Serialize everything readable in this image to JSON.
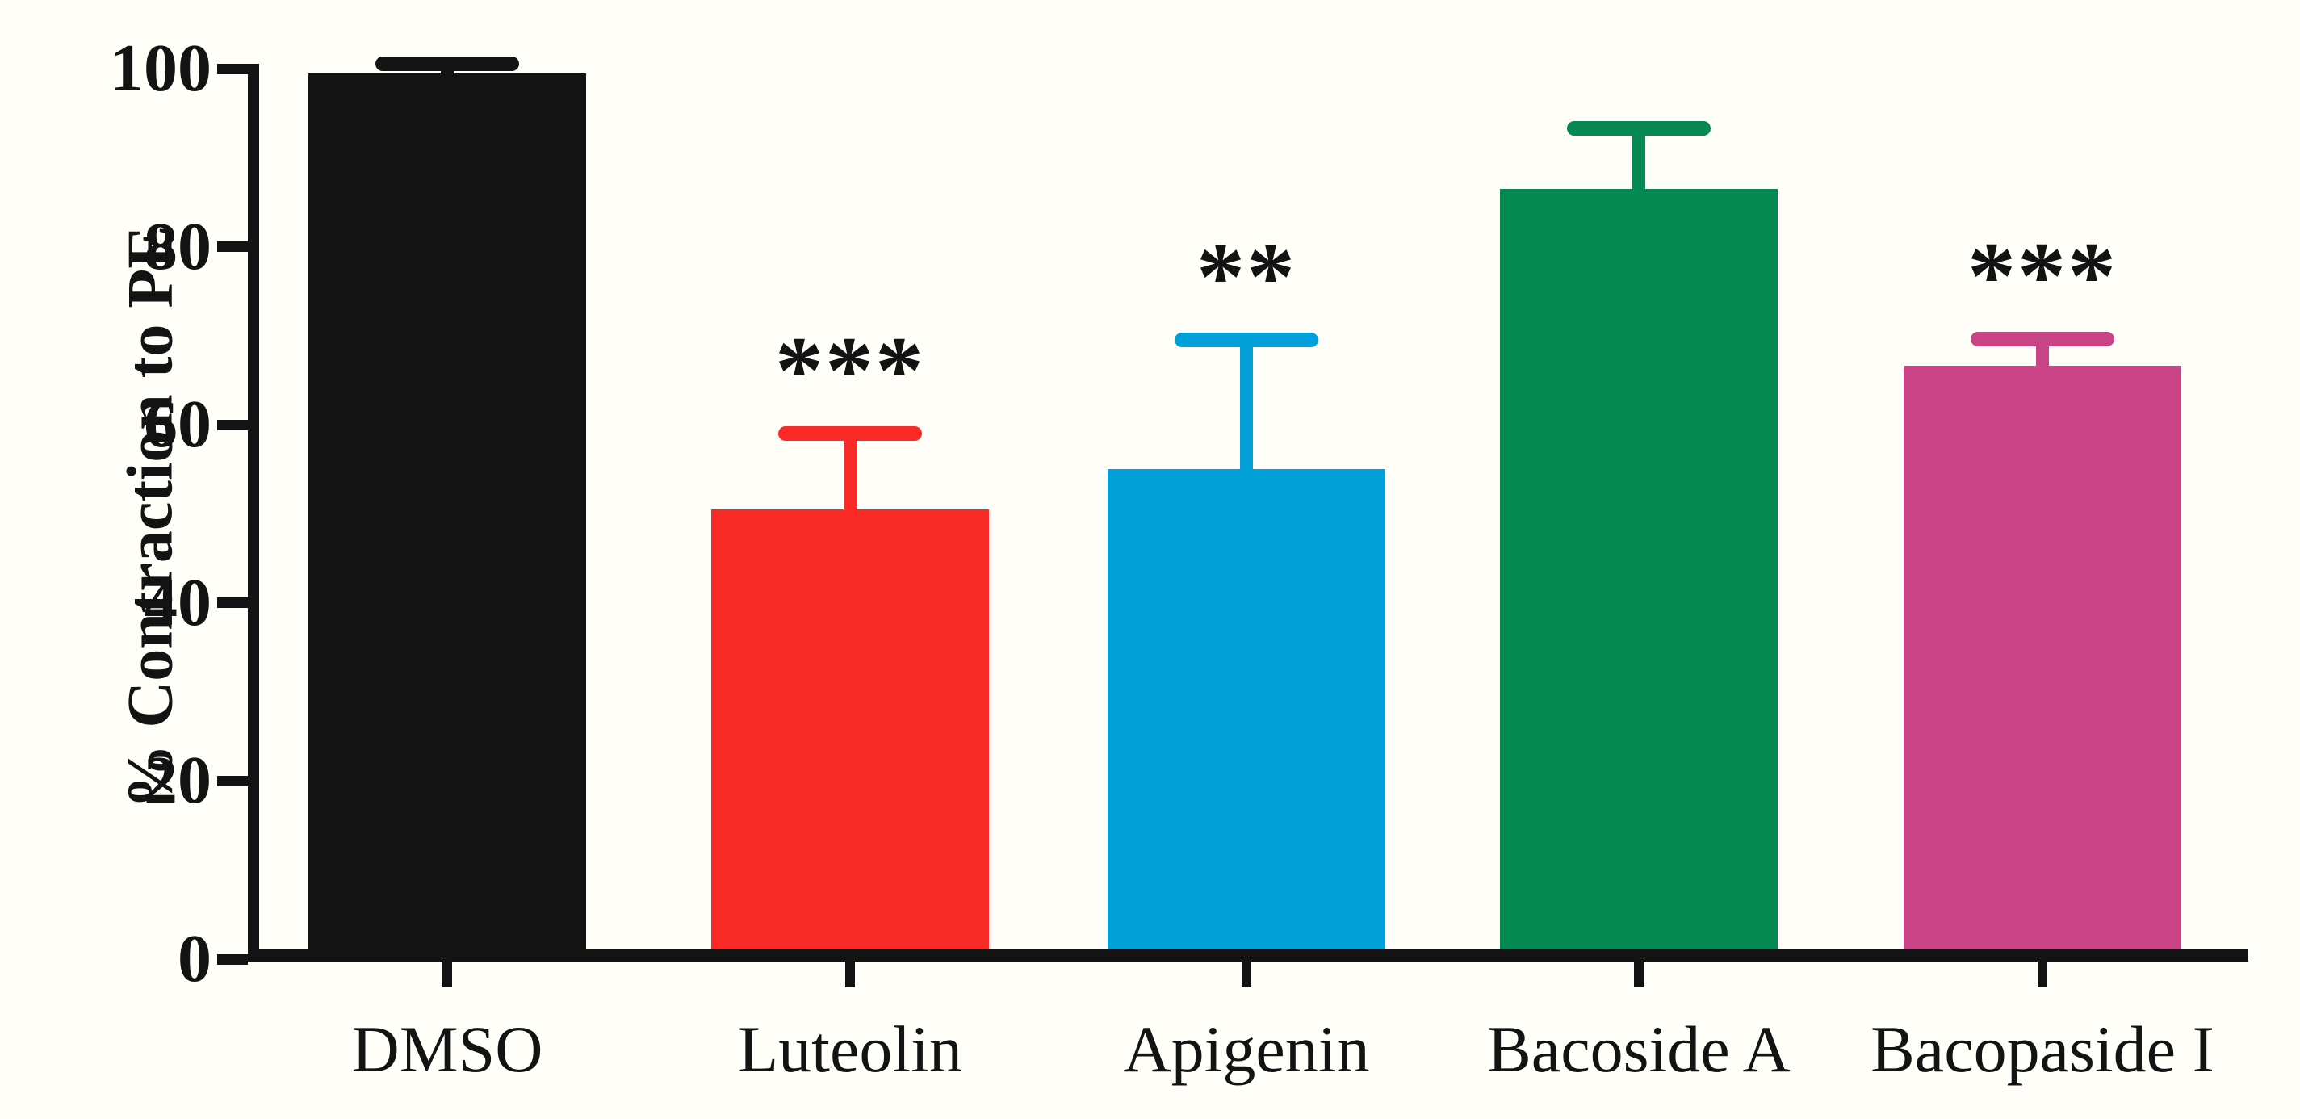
{
  "chart_data": {
    "type": "bar",
    "title": "",
    "xlabel": "",
    "ylabel": "% Contraction to PE",
    "categories": [
      "DMSO",
      "Luteolin",
      "Apigenin",
      "Bacoside A",
      "Bacopaside I"
    ],
    "values": [
      99.5,
      50.5,
      55.0,
      86.5,
      66.6
    ],
    "errors_upper": [
      1.0,
      8.5,
      14.5,
      6.8,
      3.0
    ],
    "significance": [
      "",
      "***",
      "**",
      "",
      "***"
    ],
    "bar_colors": [
      "#131313",
      "#FA2B26",
      "#02A0D8",
      "#038951",
      "#C94486"
    ],
    "yticks": [
      0,
      20,
      40,
      60,
      80,
      100
    ],
    "ylim": [
      0,
      100
    ],
    "grid": false,
    "legend": null,
    "error_bar_style": "upper SEM with cap",
    "background_color": "#FFFEF8",
    "axis_color": "#131313"
  }
}
